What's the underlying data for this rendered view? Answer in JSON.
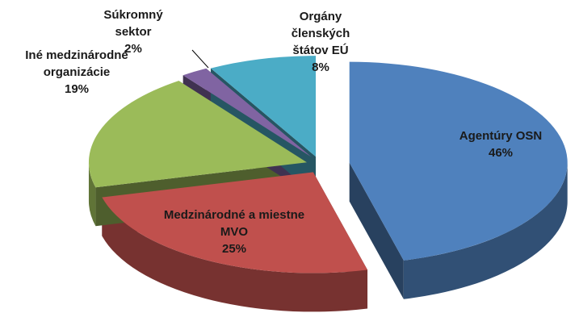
{
  "chart_data": {
    "type": "pie3d",
    "categories": [
      "Agentúry OSN",
      "Medzinárodné a miestne MVO",
      "Iné medzinárodné organizácie",
      "Súkromný sektor",
      "Orgány členských štátov EÚ"
    ],
    "values": [
      46,
      25,
      19,
      2,
      8
    ],
    "value_labels": [
      "46%",
      "25%",
      "19%",
      "2%",
      "8%"
    ],
    "colors": [
      "#4f81bd",
      "#c0504d",
      "#9bbb59",
      "#8064a2",
      "#4bacc6"
    ]
  }
}
